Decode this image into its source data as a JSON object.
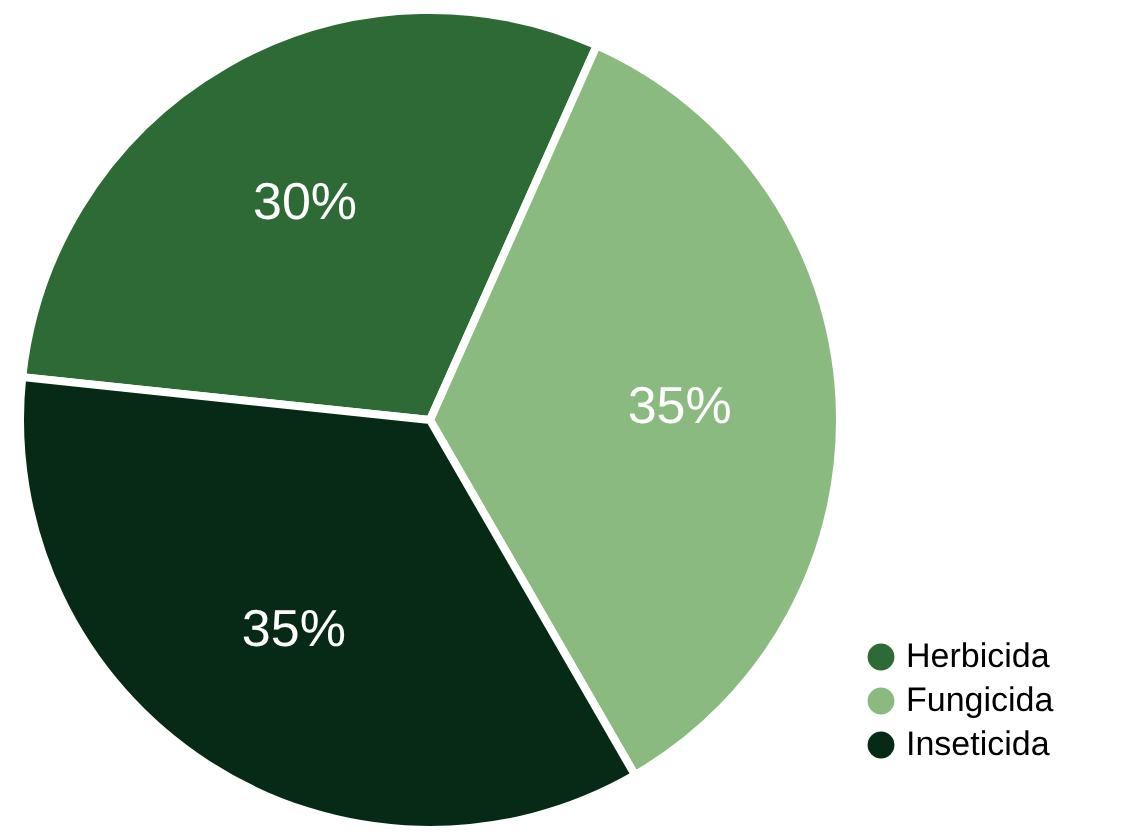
{
  "chart_data": {
    "type": "pie",
    "categories": [
      "Herbicida",
      "Fungicida",
      "Inseticida"
    ],
    "values": [
      30,
      35,
      35
    ],
    "colors": [
      "#2d6a35",
      "#8aba7f",
      "#062a16"
    ],
    "value_labels": [
      "30%",
      "35%",
      "35%"
    ],
    "legend": "bottom right"
  }
}
